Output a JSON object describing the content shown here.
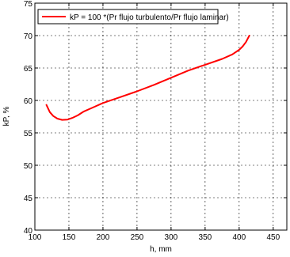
{
  "chart_data": {
    "type": "line",
    "xlabel": "h, mm",
    "ylabel": "kP, %",
    "xlim": [
      100,
      470
    ],
    "ylim": [
      40,
      75
    ],
    "xticks": [
      "100",
      "150",
      "200",
      "250",
      "300",
      "350",
      "400",
      "450"
    ],
    "yticks": [
      "40",
      "45",
      "50",
      "55",
      "60",
      "65",
      "70",
      "75"
    ],
    "grid": true,
    "grid_style": "dotted",
    "legend_position": "top-left",
    "series": [
      {
        "name": "kP = 100 *(Pr flujo turbulento/Pr flujo laminar)",
        "color": "#ff0000",
        "x": [
          117,
          122,
          127,
          133,
          140,
          148,
          155,
          163,
          172,
          185,
          200,
          225,
          250,
          275,
          300,
          325,
          350,
          375,
          390,
          400,
          405,
          410,
          415
        ],
        "y": [
          59.3,
          58.2,
          57.6,
          57.2,
          57.0,
          57.05,
          57.3,
          57.7,
          58.3,
          58.9,
          59.6,
          60.5,
          61.4,
          62.4,
          63.5,
          64.6,
          65.5,
          66.4,
          67.1,
          67.8,
          68.3,
          69.0,
          70.0
        ]
      }
    ]
  }
}
